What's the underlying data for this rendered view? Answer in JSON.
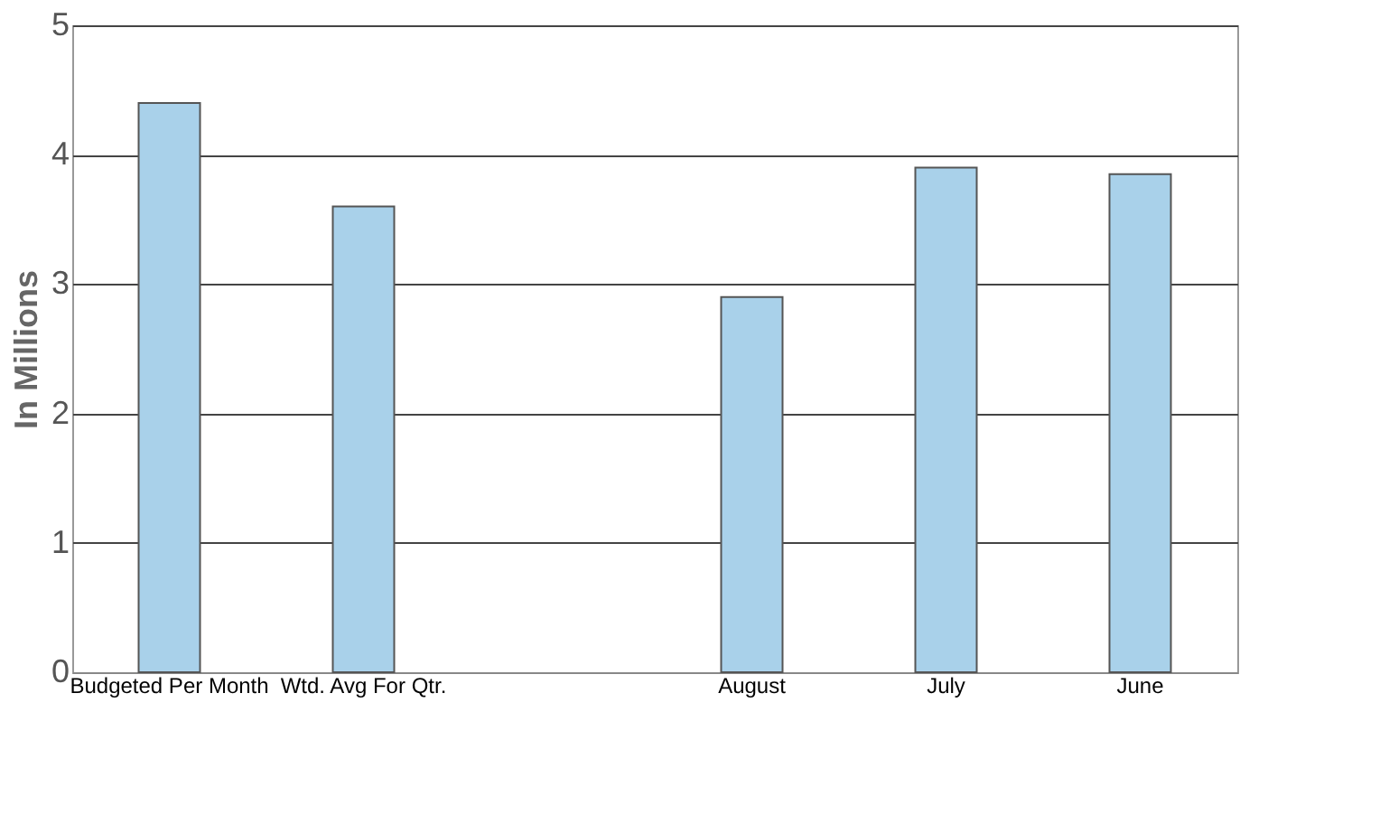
{
  "chart_data": {
    "type": "bar",
    "ylabel": "In Millions",
    "categories": [
      "Budgeted Per Month",
      "Wtd. Avg For Qtr.",
      null,
      "August",
      "July",
      "June"
    ],
    "values": [
      4.4,
      3.6,
      null,
      2.9,
      3.9,
      3.85
    ],
    "color": "#a9d1ea",
    "ylim": [
      0,
      5
    ],
    "yticks": [
      0,
      1,
      2,
      3,
      4,
      5
    ],
    "grid": "y"
  }
}
